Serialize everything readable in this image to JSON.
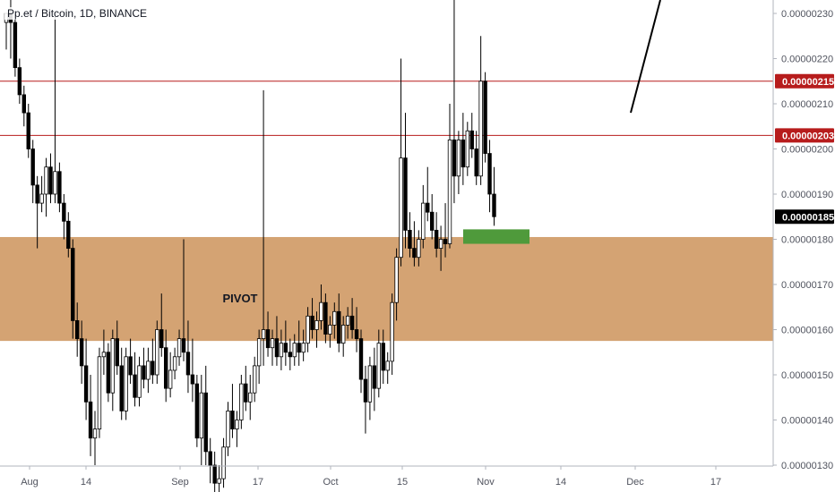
{
  "header": {
    "symbol": "Pp.et / Bitcoin, 1D, BINANCE"
  },
  "colors": {
    "up": "#ffffff",
    "down": "#000000",
    "candle_border": "#000000",
    "pivot_zone": "#d4a373",
    "hline": "#b71c1c",
    "label_bg": "#b71c1c",
    "last_price_bg": "#000000",
    "target_box": "#4f9a3b",
    "trendline": "#000000",
    "axis_text": "#50535e",
    "axis_line": "#b2b5be"
  },
  "chart_data": {
    "type": "candlestick",
    "title": "Pp.et / Bitcoin, 1D, BINANCE",
    "x_axis": {
      "tick_labels": [
        "Aug",
        "14",
        "Sep",
        "17",
        "Oct",
        "15",
        "Nov",
        "14",
        "Dec",
        "17"
      ]
    },
    "y_axis": {
      "range": [
        1.3e-06,
        2.335e-06
      ],
      "tick_labels": [
        "0.00000230",
        "0.00000220",
        "0.00000210",
        "0.00000200",
        "0.00000190",
        "0.00000180",
        "0.00000170",
        "0.00000160",
        "0.00000150",
        "0.00000140",
        "0.00000130"
      ],
      "tick_values": [
        2.3e-06,
        2.2e-06,
        2.1e-06,
        2e-06,
        1.9e-06,
        1.8e-06,
        1.7e-06,
        1.6e-06,
        1.5e-06,
        1.4e-06,
        1.3e-06
      ]
    },
    "horizontal_lines": [
      {
        "value": 2.15e-06,
        "label": "0.00000215"
      },
      {
        "value": 2.03e-06,
        "label": "0.00000203"
      }
    ],
    "last_price": {
      "value": 1.85e-06,
      "label": "0.00000185"
    },
    "pivot_zone": {
      "label": "PIVOT",
      "high": 1.805e-06,
      "low": 1.575e-06
    },
    "target_box": {
      "high": 1.822e-06,
      "low": 1.79e-06
    },
    "ohlc": [
      [
        2.28,
        2.3,
        2.22,
        2.3
      ],
      [
        2.3,
        2.33,
        2.2,
        2.28
      ],
      [
        2.28,
        2.3,
        2.16,
        2.18
      ],
      [
        2.18,
        2.2,
        2.1,
        2.12
      ],
      [
        2.12,
        2.14,
        2.05,
        2.08
      ],
      [
        2.08,
        2.1,
        1.98,
        2.0
      ],
      [
        2.0,
        2.02,
        1.88,
        1.92
      ],
      [
        1.92,
        1.94,
        1.78,
        1.88
      ],
      [
        1.88,
        1.94,
        1.86,
        1.9
      ],
      [
        1.9,
        1.98,
        1.85,
        1.96
      ],
      [
        1.96,
        1.99,
        1.88,
        1.9
      ],
      [
        1.9,
        2.3,
        1.88,
        1.95
      ],
      [
        1.95,
        1.97,
        1.86,
        1.88
      ],
      [
        1.88,
        1.9,
        1.8,
        1.84
      ],
      [
        1.84,
        1.86,
        1.76,
        1.78
      ],
      [
        1.78,
        1.8,
        1.58,
        1.62
      ],
      [
        1.62,
        1.66,
        1.54,
        1.58
      ],
      [
        1.58,
        1.62,
        1.48,
        1.52
      ],
      [
        1.52,
        1.58,
        1.4,
        1.44
      ],
      [
        1.44,
        1.5,
        1.32,
        1.36
      ],
      [
        1.36,
        1.42,
        1.3,
        1.38
      ],
      [
        1.38,
        1.56,
        1.36,
        1.54
      ],
      [
        1.54,
        1.6,
        1.5,
        1.55
      ],
      [
        1.55,
        1.57,
        1.44,
        1.46
      ],
      [
        1.46,
        1.6,
        1.42,
        1.58
      ],
      [
        1.58,
        1.62,
        1.5,
        1.52
      ],
      [
        1.52,
        1.56,
        1.4,
        1.42
      ],
      [
        1.42,
        1.56,
        1.4,
        1.54
      ],
      [
        1.54,
        1.58,
        1.48,
        1.5
      ],
      [
        1.5,
        1.55,
        1.43,
        1.45
      ],
      [
        1.45,
        1.54,
        1.43,
        1.52
      ],
      [
        1.52,
        1.56,
        1.47,
        1.49
      ],
      [
        1.49,
        1.56,
        1.46,
        1.53
      ],
      [
        1.53,
        1.58,
        1.48,
        1.5
      ],
      [
        1.5,
        1.62,
        1.48,
        1.6
      ],
      [
        1.6,
        1.68,
        1.54,
        1.56
      ],
      [
        1.56,
        1.6,
        1.44,
        1.47
      ],
      [
        1.47,
        1.55,
        1.45,
        1.51
      ],
      [
        1.51,
        1.56,
        1.49,
        1.54
      ],
      [
        1.54,
        1.6,
        1.52,
        1.58
      ],
      [
        1.58,
        1.8,
        1.53,
        1.55
      ],
      [
        1.55,
        1.62,
        1.46,
        1.5
      ],
      [
        1.5,
        1.58,
        1.44,
        1.48
      ],
      [
        1.48,
        1.5,
        1.34,
        1.36
      ],
      [
        1.36,
        1.5,
        1.3,
        1.46
      ],
      [
        1.46,
        1.52,
        1.3,
        1.33
      ],
      [
        1.33,
        1.36,
        1.26,
        1.3
      ],
      [
        1.3,
        1.33,
        1.24,
        1.26
      ],
      [
        1.26,
        1.3,
        1.22,
        1.27
      ],
      [
        1.27,
        1.36,
        1.25,
        1.34
      ],
      [
        1.34,
        1.44,
        1.32,
        1.42
      ],
      [
        1.42,
        1.48,
        1.36,
        1.38
      ],
      [
        1.38,
        1.42,
        1.34,
        1.4
      ],
      [
        1.4,
        1.5,
        1.38,
        1.48
      ],
      [
        1.48,
        1.52,
        1.42,
        1.44
      ],
      [
        1.44,
        1.5,
        1.4,
        1.46
      ],
      [
        1.46,
        1.54,
        1.44,
        1.52
      ],
      [
        1.52,
        1.6,
        1.48,
        1.58
      ],
      [
        1.58,
        2.13,
        1.52,
        1.6
      ],
      [
        1.6,
        1.64,
        1.54,
        1.56
      ],
      [
        1.56,
        1.6,
        1.52,
        1.58
      ],
      [
        1.58,
        1.63,
        1.52,
        1.54
      ],
      [
        1.54,
        1.6,
        1.51,
        1.57
      ],
      [
        1.57,
        1.62,
        1.52,
        1.55
      ],
      [
        1.55,
        1.58,
        1.51,
        1.54
      ],
      [
        1.54,
        1.59,
        1.52,
        1.57
      ],
      [
        1.57,
        1.62,
        1.52,
        1.55
      ],
      [
        1.55,
        1.6,
        1.53,
        1.57
      ],
      [
        1.57,
        1.65,
        1.55,
        1.63
      ],
      [
        1.63,
        1.67,
        1.58,
        1.6
      ],
      [
        1.6,
        1.64,
        1.56,
        1.62
      ],
      [
        1.62,
        1.7,
        1.6,
        1.66
      ],
      [
        1.66,
        1.68,
        1.57,
        1.59
      ],
      [
        1.59,
        1.63,
        1.56,
        1.61
      ],
      [
        1.61,
        1.66,
        1.58,
        1.64
      ],
      [
        1.64,
        1.68,
        1.55,
        1.57
      ],
      [
        1.57,
        1.63,
        1.54,
        1.61
      ],
      [
        1.61,
        1.65,
        1.58,
        1.63
      ],
      [
        1.63,
        1.67,
        1.58,
        1.6
      ],
      [
        1.6,
        1.65,
        1.55,
        1.58
      ],
      [
        1.58,
        1.6,
        1.46,
        1.49
      ],
      [
        1.49,
        1.52,
        1.37,
        1.44
      ],
      [
        1.44,
        1.54,
        1.4,
        1.52
      ],
      [
        1.52,
        1.56,
        1.42,
        1.47
      ],
      [
        1.47,
        1.6,
        1.45,
        1.57
      ],
      [
        1.57,
        1.6,
        1.48,
        1.51
      ],
      [
        1.51,
        1.55,
        1.48,
        1.53
      ],
      [
        1.53,
        1.68,
        1.5,
        1.66
      ],
      [
        1.66,
        1.78,
        1.62,
        1.76
      ],
      [
        1.76,
        2.2,
        1.74,
        1.98
      ],
      [
        1.98,
        2.08,
        1.78,
        1.82
      ],
      [
        1.82,
        1.86,
        1.76,
        1.78
      ],
      [
        1.78,
        1.84,
        1.74,
        1.76
      ],
      [
        1.76,
        1.82,
        1.74,
        1.8
      ],
      [
        1.8,
        1.92,
        1.78,
        1.88
      ],
      [
        1.88,
        1.96,
        1.84,
        1.86
      ],
      [
        1.86,
        1.9,
        1.8,
        1.82
      ],
      [
        1.82,
        1.86,
        1.76,
        1.78
      ],
      [
        1.78,
        1.83,
        1.73,
        1.8
      ],
      [
        1.8,
        1.88,
        1.76,
        1.79
      ],
      [
        1.79,
        2.1,
        1.78,
        2.02
      ],
      [
        2.02,
        2.4,
        1.88,
        1.94
      ],
      [
        1.94,
        2.04,
        1.9,
        2.02
      ],
      [
        2.02,
        2.08,
        1.92,
        1.96
      ],
      [
        1.96,
        2.06,
        1.94,
        2.04
      ],
      [
        2.04,
        2.08,
        1.98,
        2.0
      ],
      [
        2.0,
        2.04,
        1.92,
        1.94
      ],
      [
        1.94,
        2.25,
        1.92,
        2.15
      ],
      [
        2.15,
        2.17,
        1.97,
        1.99
      ],
      [
        1.99,
        2.02,
        1.86,
        1.9
      ],
      [
        1.9,
        1.96,
        1.83,
        1.85
      ]
    ]
  }
}
